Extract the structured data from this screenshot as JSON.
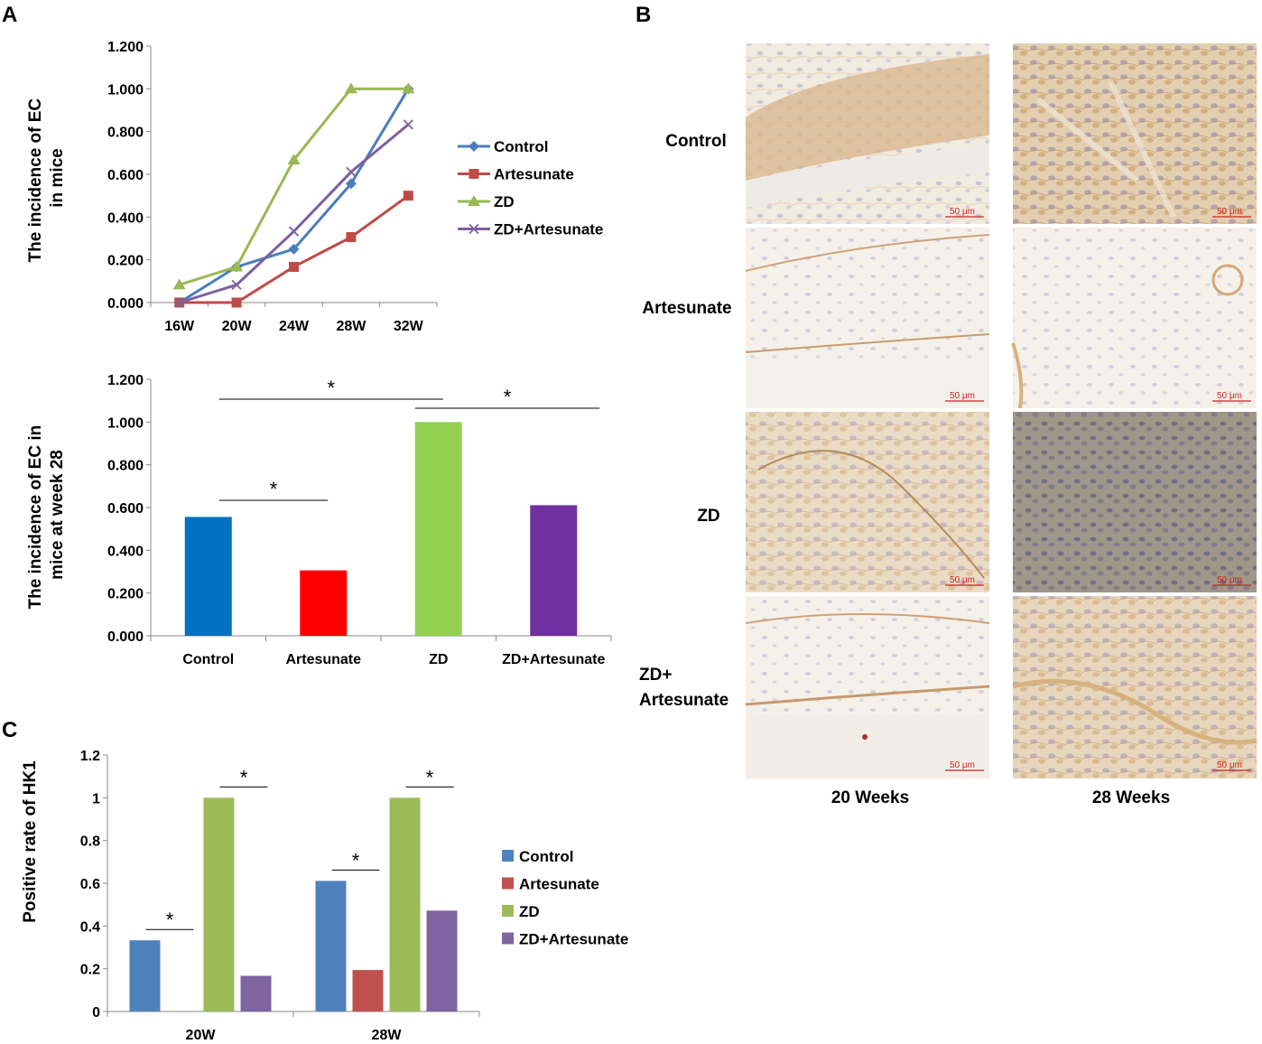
{
  "panels": {
    "a": "A",
    "b": "B",
    "c": "C"
  },
  "chart_data": [
    {
      "type": "line",
      "ylabel": "The incidence of EC in mice",
      "ylabel_lines": [
        "The incidence of EC",
        "in mice"
      ],
      "categories": [
        "16W",
        "20W",
        "24W",
        "28W",
        "32W"
      ],
      "ylim": [
        0,
        1.2
      ],
      "yticks": [
        "0.000",
        "0.200",
        "0.400",
        "0.600",
        "0.800",
        "1.000",
        "1.200"
      ],
      "legend_position": "right",
      "series": [
        {
          "name": "Control",
          "values": [
            0.0,
            0.167,
            0.25,
            0.556,
            1.0
          ],
          "color": "#4a7ebb",
          "marker": "diamond"
        },
        {
          "name": "Artesunate",
          "values": [
            0.0,
            0.0,
            0.167,
            0.306,
            0.5
          ],
          "color": "#be4b48",
          "marker": "square"
        },
        {
          "name": "ZD",
          "values": [
            0.083,
            0.167,
            0.667,
            1.0,
            1.0
          ],
          "color": "#98b954",
          "marker": "triangle"
        },
        {
          "name": "ZD+Artesunate",
          "values": [
            0.0,
            0.083,
            0.333,
            0.611,
            0.833
          ],
          "color": "#7d60a0",
          "marker": "x"
        }
      ]
    },
    {
      "type": "bar",
      "ylabel": "The incidence of EC in mice at week 28",
      "ylabel_lines": [
        "The incidence of EC in",
        "mice at week 28"
      ],
      "categories": [
        "Control",
        "Artesunate",
        "ZD",
        "ZD+Artesunate"
      ],
      "values": [
        0.556,
        0.306,
        1.0,
        0.611
      ],
      "colors": [
        "#0070c0",
        "#ff0000",
        "#92d050",
        "#7030a0"
      ],
      "ylim": [
        0,
        1.2
      ],
      "yticks": [
        "0.000",
        "0.200",
        "0.400",
        "0.600",
        "0.800",
        "1.000",
        "1.200"
      ],
      "annotations": [
        {
          "text": "*",
          "between": [
            "Control",
            "ZD"
          ]
        },
        {
          "text": "*",
          "between": [
            "ZD",
            "ZD+Artesunate"
          ]
        },
        {
          "text": "*",
          "between": [
            "Control",
            "Artesunate"
          ]
        }
      ]
    },
    {
      "type": "bar",
      "ylabel": "Positive rate of HK1",
      "categories": [
        "20W",
        "28W"
      ],
      "ylim": [
        0,
        1.2
      ],
      "yticks": [
        "0",
        "0.2",
        "0.4",
        "0.6",
        "0.8",
        "1",
        "1.2"
      ],
      "legend_position": "right",
      "series": [
        {
          "name": "Control",
          "values": [
            0.333,
            0.611
          ],
          "color": "#4f81bd"
        },
        {
          "name": "Artesunate",
          "values": [
            0.0,
            0.194
          ],
          "color": "#c0504d"
        },
        {
          "name": "ZD",
          "values": [
            1.0,
            1.0
          ],
          "color": "#9bbb59"
        },
        {
          "name": "ZD+Artesunate",
          "values": [
            0.167,
            0.472
          ],
          "color": "#8064a2"
        }
      ],
      "annotations": [
        {
          "text": "*",
          "category": "20W",
          "between": [
            "Control",
            "Artesunate"
          ]
        },
        {
          "text": "*",
          "category": "20W",
          "between": [
            "ZD",
            "ZD+Artesunate"
          ]
        },
        {
          "text": "*",
          "category": "28W",
          "between": [
            "Control",
            "Artesunate"
          ]
        },
        {
          "text": "*",
          "category": "28W",
          "between": [
            "ZD",
            "ZD+Artesunate"
          ]
        }
      ]
    }
  ],
  "micrographs": {
    "rows": [
      "Control",
      "Artesunate",
      "ZD",
      "ZD+Artesunate"
    ],
    "row_label_lines": [
      [
        "Control"
      ],
      [
        "Artesunate"
      ],
      [
        "ZD"
      ],
      [
        "ZD+",
        "Artesunate"
      ]
    ],
    "columns": [
      "20 Weeks",
      "28 Weeks"
    ],
    "scale_bar": "50 μm"
  }
}
